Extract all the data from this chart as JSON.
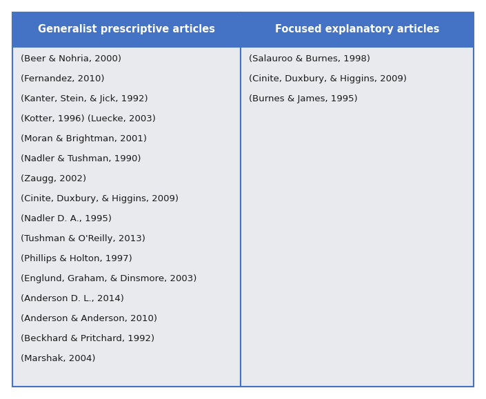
{
  "header_bg_color": "#4472C4",
  "header_text_color": "#FFFFFF",
  "cell_bg_color": "#E8EAED",
  "outer_bg_color": "#FFFFFF",
  "border_color": "#4472C4",
  "col1_header": "Generalist prescriptive articles",
  "col2_header": "Focused explanatory articles",
  "col1_items": [
    "(Beer & Nohria, 2000)",
    "(Fernandez, 2010)",
    "(Kanter, Stein, & Jick, 1992)",
    "(Kotter, 1996) (Luecke, 2003)",
    "(Moran & Brightman, 2001)",
    "(Nadler & Tushman, 1990)",
    "(Zaugg, 2002)",
    "(Cinite, Duxbury, & Higgins, 2009)",
    "(Nadler D. A., 1995)",
    "(Tushman & O'Reilly, 2013)",
    "(Phillips & Holton, 1997)",
    "(Englund, Graham, & Dinsmore, 2003)",
    "(Anderson D. L., 2014)",
    "(Anderson & Anderson, 2010)",
    "(Beckhard & Pritchard, 1992)",
    "(Marshak, 2004)"
  ],
  "col2_items": [
    "(Salauroo & Burnes, 1998)",
    "(Cinite, Duxbury, & Higgins, 2009)",
    "(Burnes & James, 1995)"
  ],
  "header_fontsize": 10.5,
  "body_fontsize": 9.5,
  "figsize": [
    7.05,
    5.79
  ],
  "dpi": 100
}
